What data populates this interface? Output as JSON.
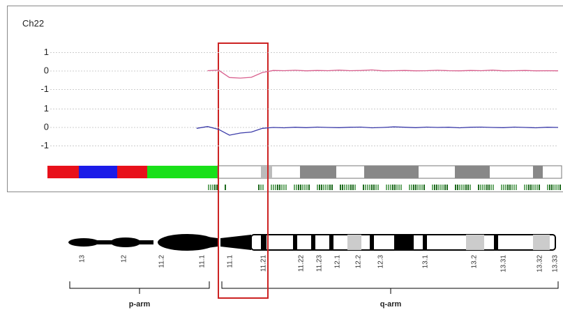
{
  "title": "Ch22",
  "chart_data": [
    {
      "type": "line",
      "color": "#d9608e",
      "ylim": [
        -1.3,
        1.3
      ],
      "yticks": [
        1,
        0,
        -1
      ],
      "grid": true,
      "values": [
        null,
        null,
        null,
        null,
        null,
        null,
        null,
        null,
        null,
        null,
        null,
        null,
        null,
        null,
        null,
        0.02,
        0.05,
        -0.35,
        -0.38,
        -0.34,
        -0.08,
        0.03,
        0.02,
        0.04,
        0.01,
        0.03,
        0.02,
        0.05,
        0.02,
        0.03,
        0.06,
        0.01,
        0.02,
        0.03,
        0.01,
        0.02,
        0.04,
        0.02,
        0.01,
        0.03,
        0.02,
        0.05,
        0.01,
        0.02,
        0.03,
        0.01,
        0.02,
        0.01
      ]
    },
    {
      "type": "line",
      "color": "#3a3aa8",
      "ylim": [
        -1.3,
        1.3
      ],
      "yticks": [
        1,
        0,
        -1
      ],
      "grid": true,
      "values": [
        null,
        null,
        null,
        null,
        null,
        null,
        null,
        null,
        null,
        null,
        null,
        null,
        null,
        null,
        -0.05,
        0.05,
        -0.1,
        -0.42,
        -0.3,
        -0.25,
        -0.05,
        0.0,
        -0.02,
        0.01,
        -0.01,
        0.02,
        0.0,
        -0.01,
        0.01,
        0.02,
        -0.02,
        0.0,
        0.03,
        0.01,
        -0.01,
        0.02,
        0.0,
        0.01,
        -0.02,
        0.01,
        0.02,
        0.0,
        -0.01,
        0.02,
        0.0,
        -0.02,
        0.01,
        0.0
      ]
    }
  ],
  "ideogram": {
    "band_labels": [
      "13",
      "12",
      "11.2",
      "11.1",
      "11.1",
      "11.21",
      "11.22",
      "11.23",
      "12.1",
      "12.2",
      "12.3",
      "13.1",
      "13.2",
      "13.31",
      "13.32",
      "13.33"
    ],
    "arms": [
      "p-arm",
      "q-arm"
    ]
  }
}
